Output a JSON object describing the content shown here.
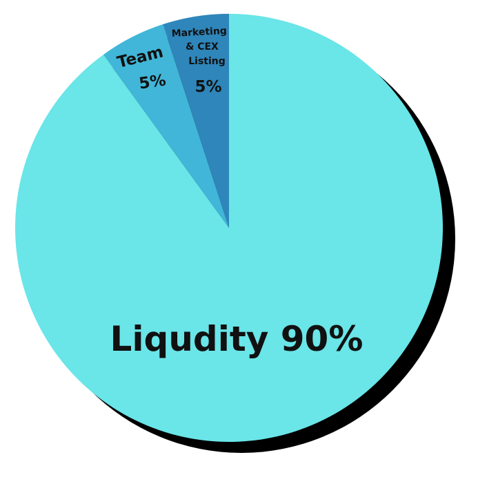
{
  "chart_data": {
    "type": "pie",
    "title": "",
    "slices": [
      {
        "label": "Liqudity",
        "percent_label": "90%",
        "value": 90,
        "color": "#6ae5e8"
      },
      {
        "label": "Team",
        "percent_label": "5%",
        "value": 5,
        "color": "#41b6d8"
      },
      {
        "label_lines": [
          "Marketing",
          "& CEX",
          "Listing"
        ],
        "percent_label": "5%",
        "value": 5,
        "color": "#2e86ba"
      }
    ],
    "main_label": "Liqudity 90%",
    "shadow_color": "#000000"
  }
}
